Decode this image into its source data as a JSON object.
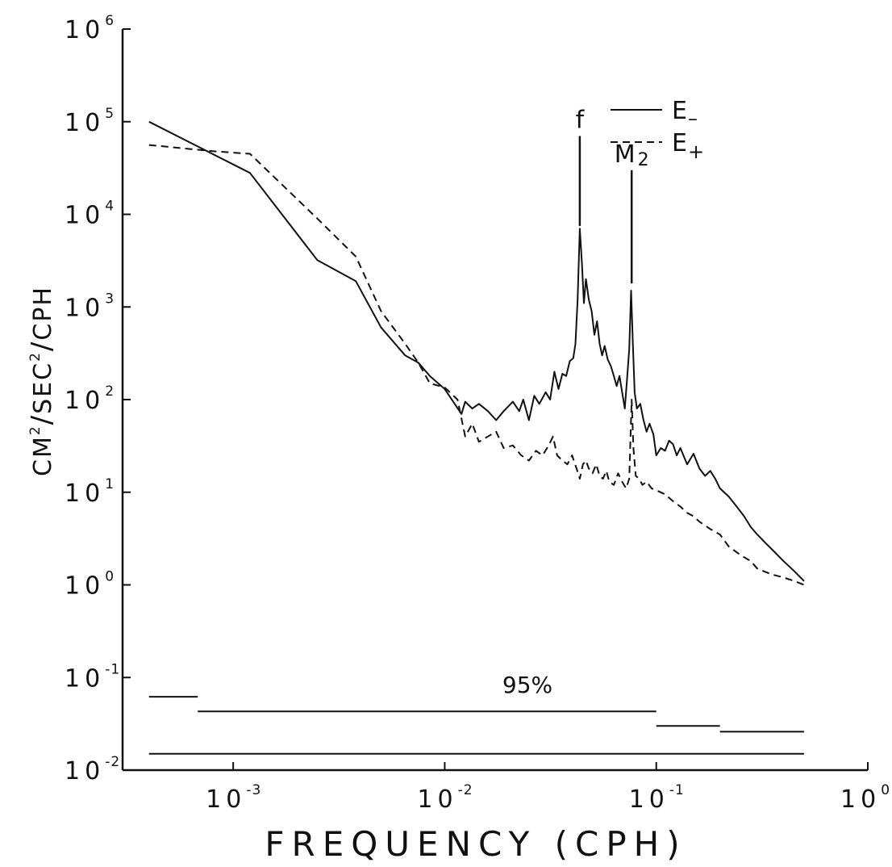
{
  "chart_data": {
    "type": "line",
    "xlabel": "FREQUENCY (CPH)",
    "ylabel_parts": {
      "cm": "CM",
      "cm_exp": "2",
      "slash1": "/",
      "sec": "SEC",
      "sec_exp": "2",
      "slash2": "/",
      "cph": "CPH"
    },
    "x_scale": "log",
    "y_scale": "log",
    "xlim": [
      0.0003,
      1
    ],
    "ylim": [
      0.01,
      1000000
    ],
    "x_ticks": [
      {
        "base": "10",
        "exp": "-3",
        "value": 0.001
      },
      {
        "base": "10",
        "exp": "-2",
        "value": 0.01
      },
      {
        "base": "10",
        "exp": "-1",
        "value": 0.1
      },
      {
        "base": "10",
        "exp": "0",
        "value": 1
      }
    ],
    "y_ticks": [
      {
        "base": "10",
        "exp": "-2",
        "value": 0.01
      },
      {
        "base": "10",
        "exp": "-1",
        "value": 0.1
      },
      {
        "base": "10",
        "exp": "0",
        "value": 1
      },
      {
        "base": "10",
        "exp": "1",
        "value": 10
      },
      {
        "base": "10",
        "exp": "2",
        "value": 100
      },
      {
        "base": "10",
        "exp": "3",
        "value": 1000
      },
      {
        "base": "10",
        "exp": "4",
        "value": 10000
      },
      {
        "base": "10",
        "exp": "5",
        "value": 100000
      },
      {
        "base": "10",
        "exp": "6",
        "value": 1000000
      }
    ],
    "grid": false,
    "legend_position": "top-right",
    "series": [
      {
        "name": "E",
        "name_sub": "–",
        "style": "solid",
        "points": [
          [
            0.0004,
            100000
          ],
          [
            0.0012,
            28000
          ],
          [
            0.0025,
            3200
          ],
          [
            0.0038,
            1900
          ],
          [
            0.005,
            600
          ],
          [
            0.0065,
            300
          ],
          [
            0.0075,
            250
          ],
          [
            0.0085,
            180
          ],
          [
            0.01,
            130
          ],
          [
            0.012,
            70
          ],
          [
            0.0125,
            95
          ],
          [
            0.0135,
            80
          ],
          [
            0.0145,
            90
          ],
          [
            0.016,
            75
          ],
          [
            0.0175,
            60
          ],
          [
            0.019,
            75
          ],
          [
            0.021,
            95
          ],
          [
            0.0225,
            75
          ],
          [
            0.0235,
            100
          ],
          [
            0.025,
            60
          ],
          [
            0.0265,
            110
          ],
          [
            0.028,
            90
          ],
          [
            0.03,
            120
          ],
          [
            0.0315,
            100
          ],
          [
            0.033,
            200
          ],
          [
            0.0345,
            130
          ],
          [
            0.036,
            190
          ],
          [
            0.0375,
            180
          ],
          [
            0.039,
            260
          ],
          [
            0.0405,
            280
          ],
          [
            0.0415,
            400
          ],
          [
            0.0425,
            1200
          ],
          [
            0.0435,
            7000
          ],
          [
            0.0445,
            3000
          ],
          [
            0.0455,
            1100
          ],
          [
            0.0465,
            2000
          ],
          [
            0.048,
            1200
          ],
          [
            0.0495,
            900
          ],
          [
            0.051,
            500
          ],
          [
            0.0525,
            700
          ],
          [
            0.054,
            400
          ],
          [
            0.0555,
            300
          ],
          [
            0.057,
            380
          ],
          [
            0.059,
            270
          ],
          [
            0.061,
            230
          ],
          [
            0.063,
            180
          ],
          [
            0.065,
            140
          ],
          [
            0.067,
            180
          ],
          [
            0.069,
            120
          ],
          [
            0.071,
            80
          ],
          [
            0.0725,
            150
          ],
          [
            0.0745,
            350
          ],
          [
            0.076,
            1500
          ],
          [
            0.0775,
            400
          ],
          [
            0.079,
            120
          ],
          [
            0.081,
            80
          ],
          [
            0.084,
            90
          ],
          [
            0.087,
            60
          ],
          [
            0.09,
            45
          ],
          [
            0.093,
            55
          ],
          [
            0.097,
            42
          ],
          [
            0.1,
            25
          ],
          [
            0.105,
            30
          ],
          [
            0.11,
            28
          ],
          [
            0.115,
            36
          ],
          [
            0.12,
            33
          ],
          [
            0.125,
            25
          ],
          [
            0.13,
            30
          ],
          [
            0.14,
            20
          ],
          [
            0.15,
            26
          ],
          [
            0.16,
            18
          ],
          [
            0.17,
            15
          ],
          [
            0.18,
            17
          ],
          [
            0.19,
            14
          ],
          [
            0.2,
            11
          ],
          [
            0.22,
            9
          ],
          [
            0.24,
            7
          ],
          [
            0.26,
            5.5
          ],
          [
            0.28,
            4.2
          ],
          [
            0.3,
            3.5
          ],
          [
            0.33,
            2.8
          ],
          [
            0.36,
            2.3
          ],
          [
            0.4,
            1.8
          ],
          [
            0.45,
            1.4
          ],
          [
            0.5,
            1.1
          ]
        ]
      },
      {
        "name": "E",
        "name_sub": "+",
        "style": "dashed",
        "points": [
          [
            0.0004,
            56000
          ],
          [
            0.0008,
            48000
          ],
          [
            0.0012,
            45000
          ],
          [
            0.0025,
            9000
          ],
          [
            0.0038,
            3500
          ],
          [
            0.005,
            900
          ],
          [
            0.0065,
            400
          ],
          [
            0.0075,
            250
          ],
          [
            0.0085,
            150
          ],
          [
            0.01,
            135
          ],
          [
            0.0115,
            100
          ],
          [
            0.0125,
            40
          ],
          [
            0.0135,
            55
          ],
          [
            0.0145,
            35
          ],
          [
            0.016,
            40
          ],
          [
            0.0175,
            45
          ],
          [
            0.019,
            30
          ],
          [
            0.021,
            32
          ],
          [
            0.023,
            25
          ],
          [
            0.025,
            22
          ],
          [
            0.027,
            28
          ],
          [
            0.029,
            25
          ],
          [
            0.031,
            32
          ],
          [
            0.0325,
            40
          ],
          [
            0.034,
            25
          ],
          [
            0.036,
            22
          ],
          [
            0.038,
            20
          ],
          [
            0.04,
            25
          ],
          [
            0.042,
            18
          ],
          [
            0.0435,
            14
          ],
          [
            0.045,
            20
          ],
          [
            0.0465,
            22
          ],
          [
            0.048,
            18
          ],
          [
            0.05,
            16
          ],
          [
            0.052,
            20
          ],
          [
            0.054,
            15
          ],
          [
            0.056,
            14
          ],
          [
            0.058,
            17
          ],
          [
            0.06,
            13
          ],
          [
            0.063,
            12
          ],
          [
            0.066,
            16
          ],
          [
            0.069,
            13
          ],
          [
            0.072,
            11
          ],
          [
            0.0745,
            14
          ],
          [
            0.0765,
            100
          ],
          [
            0.078,
            30
          ],
          [
            0.08,
            15
          ],
          [
            0.083,
            14
          ],
          [
            0.086,
            12
          ],
          [
            0.09,
            13
          ],
          [
            0.095,
            11
          ],
          [
            0.1,
            10.5
          ],
          [
            0.11,
            9.5
          ],
          [
            0.12,
            8
          ],
          [
            0.13,
            7
          ],
          [
            0.14,
            6
          ],
          [
            0.15,
            5.5
          ],
          [
            0.16,
            4.8
          ],
          [
            0.18,
            4
          ],
          [
            0.2,
            3.5
          ],
          [
            0.22,
            2.6
          ],
          [
            0.25,
            2.1
          ],
          [
            0.28,
            1.8
          ],
          [
            0.3,
            1.5
          ],
          [
            0.35,
            1.3
          ],
          [
            0.4,
            1.2
          ],
          [
            0.45,
            1.1
          ],
          [
            0.5,
            1.0
          ]
        ]
      }
    ],
    "annotations": [
      {
        "text": "f",
        "sub": "",
        "x": 0.0435,
        "y_top": 70000,
        "y_bottom": 7500
      },
      {
        "text": "M",
        "sub": "2",
        "x": 0.0765,
        "y_top": 30000,
        "y_bottom": 1800
      }
    ],
    "confidence": {
      "label": "95%",
      "upper": [
        {
          "x0": 0.0004,
          "x1": 0.00068,
          "y": 0.062
        },
        {
          "x0": 0.00068,
          "x1": 0.1,
          "y": 0.043
        },
        {
          "x0": 0.1,
          "x1": 0.2,
          "y": 0.03
        },
        {
          "x0": 0.2,
          "x1": 0.5,
          "y": 0.026
        }
      ],
      "lower": [
        {
          "x0": 0.0004,
          "x1": 0.5,
          "y": 0.015
        }
      ]
    }
  }
}
